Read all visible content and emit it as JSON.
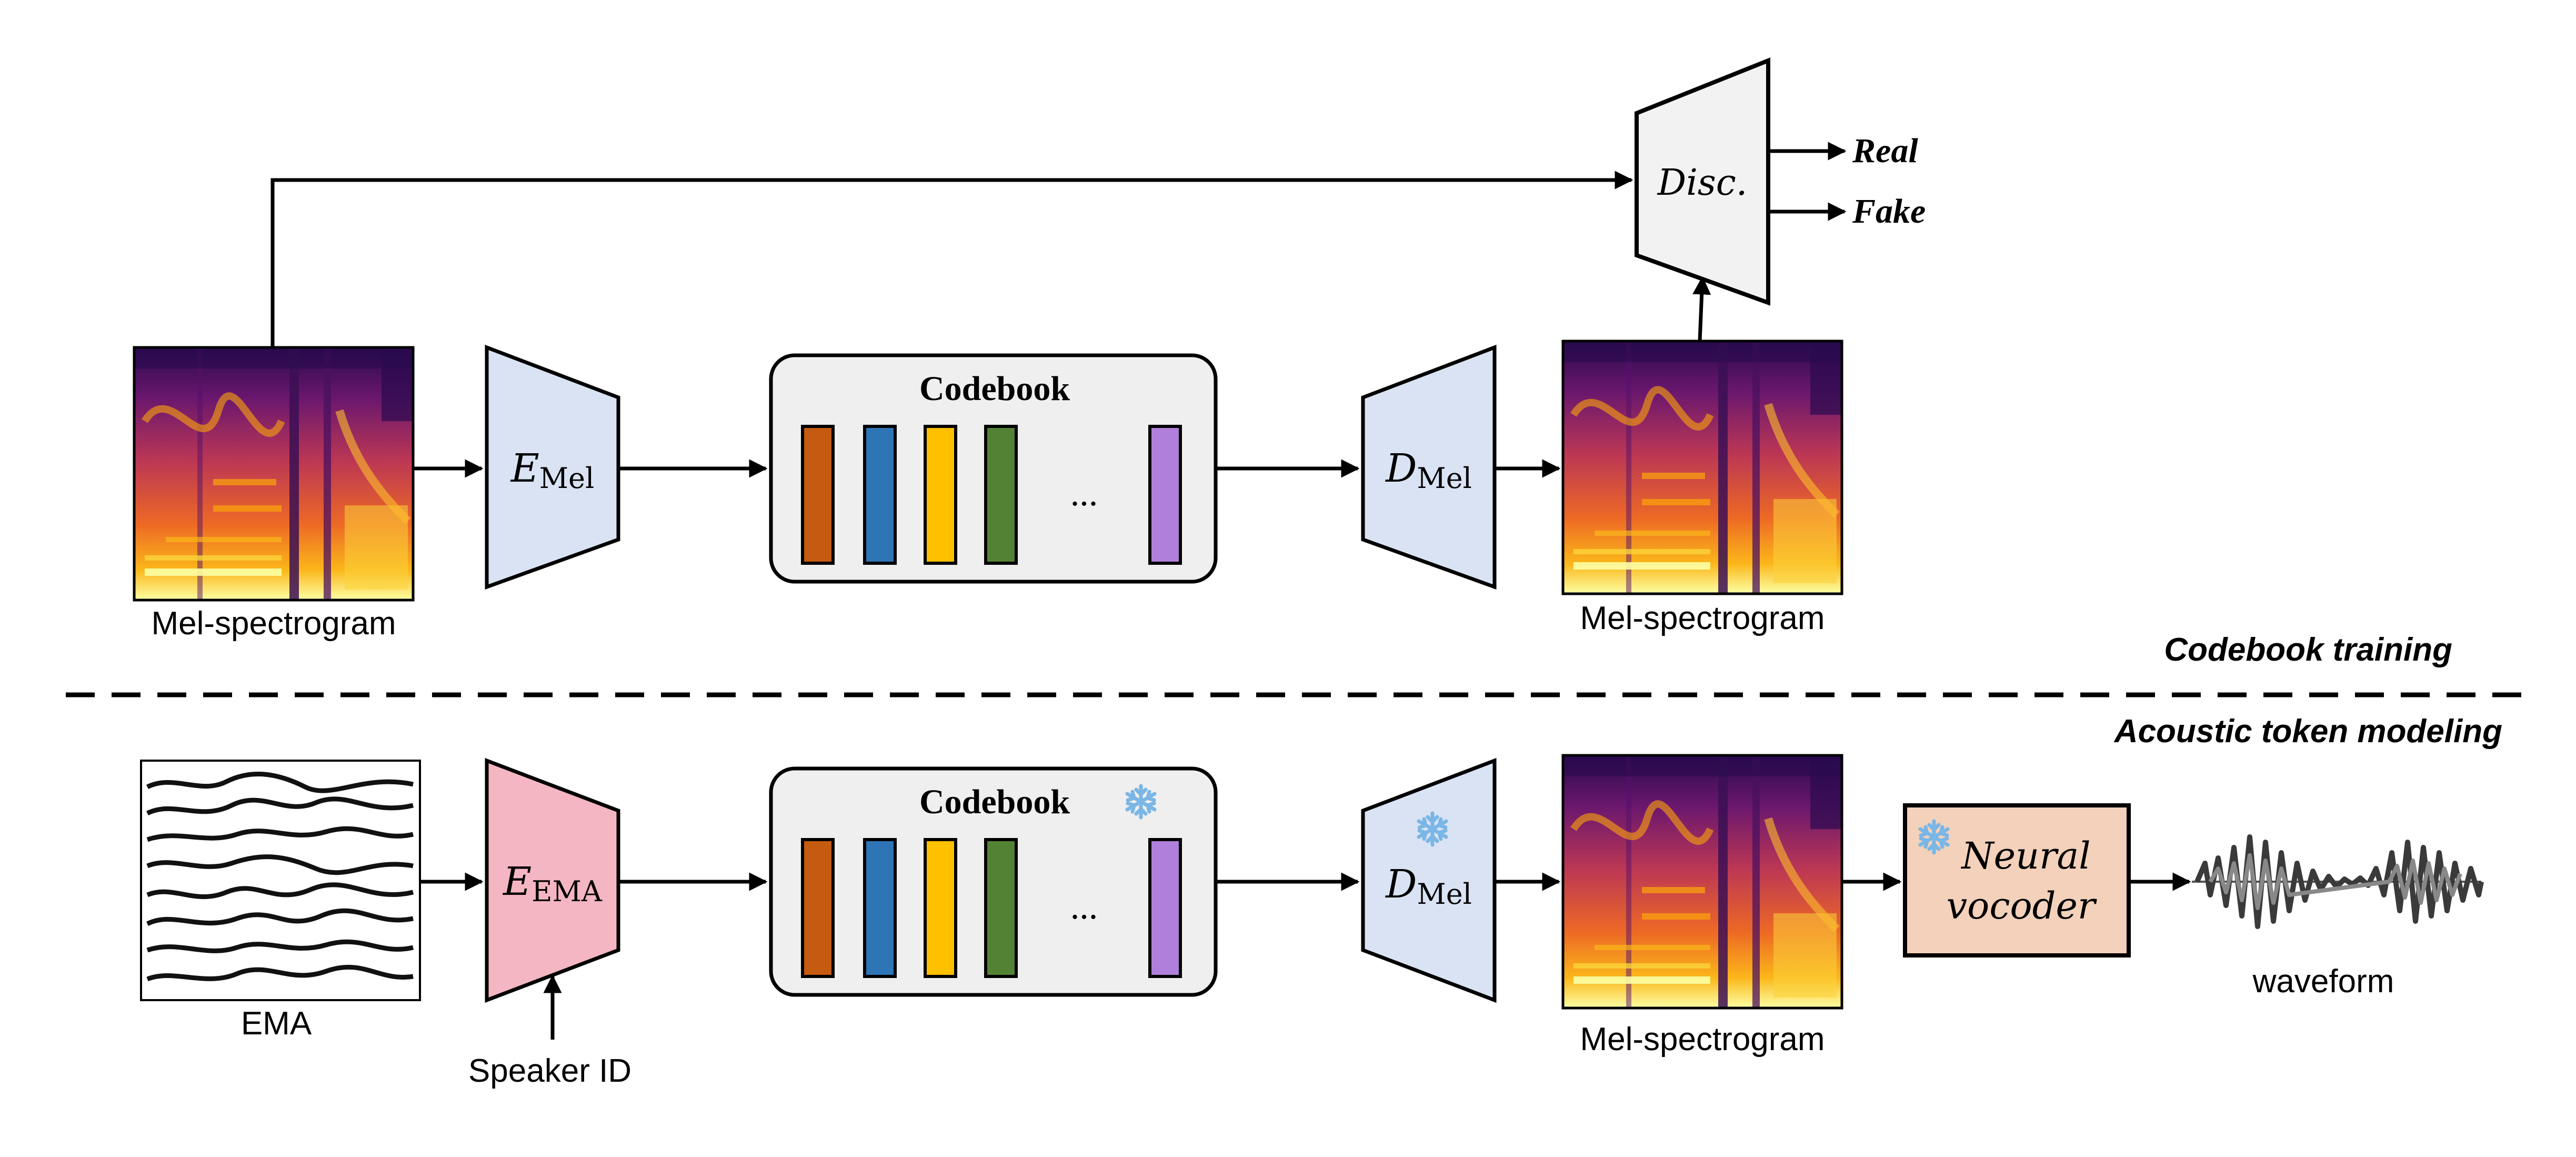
{
  "top": {
    "input_label": "Mel-spectrogram",
    "encoder": {
      "main": "E",
      "sub": "Mel"
    },
    "codebook_title": "Codebook",
    "codebook_ellipsis": "...",
    "decoder": {
      "main": "D",
      "sub": "Mel"
    },
    "output_label": "Mel-spectrogram",
    "disc_label": "Disc.",
    "real_label": "Real",
    "fake_label": "Fake",
    "section_label": "Codebook training"
  },
  "bottom": {
    "section_label": "Acoustic token modeling",
    "ema_label": "EMA",
    "encoder": {
      "main": "E",
      "sub": "EMA"
    },
    "speaker_label": "Speaker ID",
    "codebook_title": "Codebook",
    "codebook_ellipsis": "...",
    "decoder": {
      "main": "D",
      "sub": "Mel"
    },
    "mel_label": "Mel-spectrogram",
    "vocoder_line1": "Neural",
    "vocoder_line2": "vocoder",
    "waveform_label": "waveform"
  },
  "colors": {
    "codebook_vectors": [
      "#c55a11",
      "#2e75b6",
      "#ffc000",
      "#548235",
      "#b07fdb"
    ],
    "encoder_mel": "#dae3f3",
    "encoder_ema": "#f4b6c2",
    "decoder": "#dae3f3",
    "codebook_bg": "#efefef",
    "disc_bg": "#f2f2f2",
    "vocoder_bg": "#f3d1bb",
    "frozen_icon": "#7ab6e6"
  },
  "icons": {
    "frozen": "snowflake-icon"
  }
}
